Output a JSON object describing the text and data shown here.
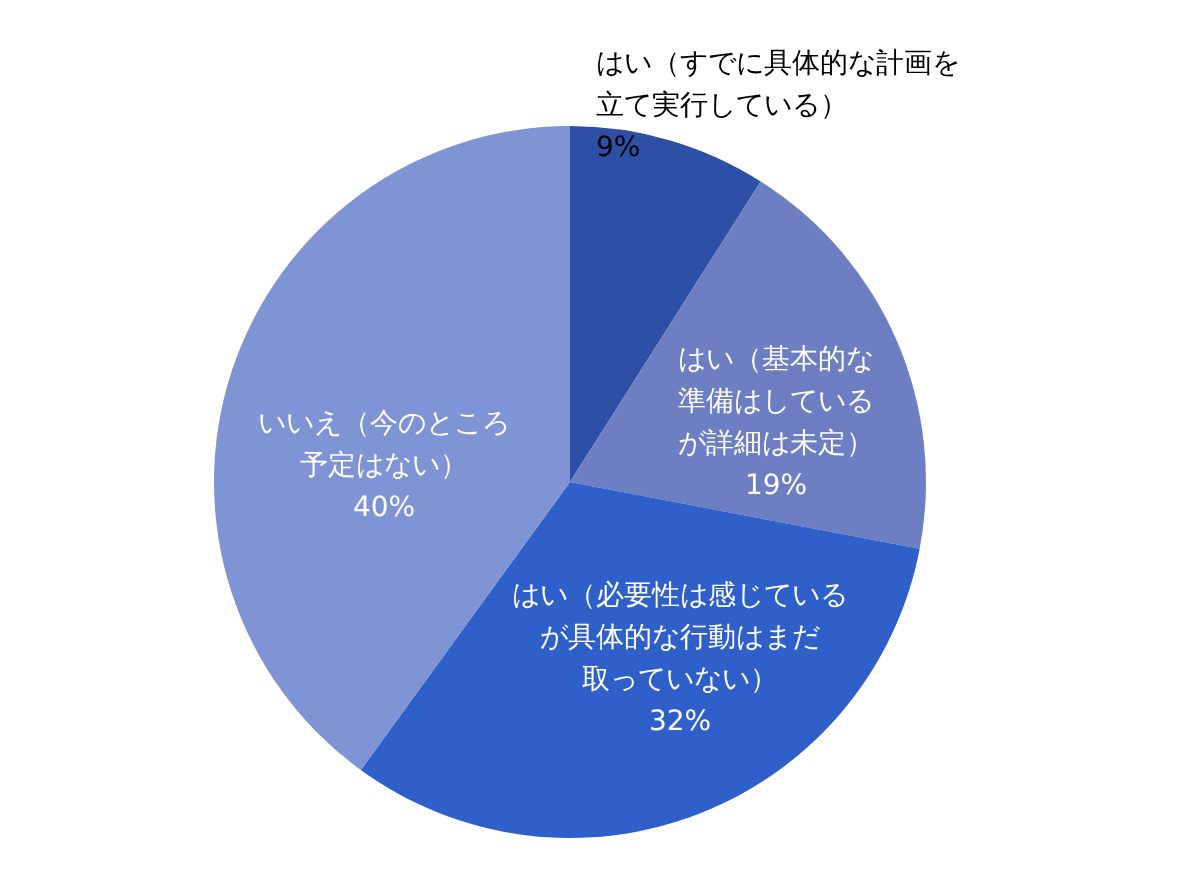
{
  "chart_data": {
    "type": "pie",
    "categories": [
      "はい（すでに具体的な計画を立て実行している）",
      "はい（基本的な準備はしているが詳細は未定）",
      "はい（必要性は感じているが具体的な行動はまだ取っていない）",
      "いいえ（今のところ予定はない）"
    ],
    "values": [
      9,
      19,
      32,
      40
    ],
    "colors": [
      "#2d4fa6",
      "#6d7fc2",
      "#2f60c9",
      "#7e94d4"
    ],
    "value_labels": [
      "9%",
      "19%",
      "32%",
      "40%"
    ]
  }
}
